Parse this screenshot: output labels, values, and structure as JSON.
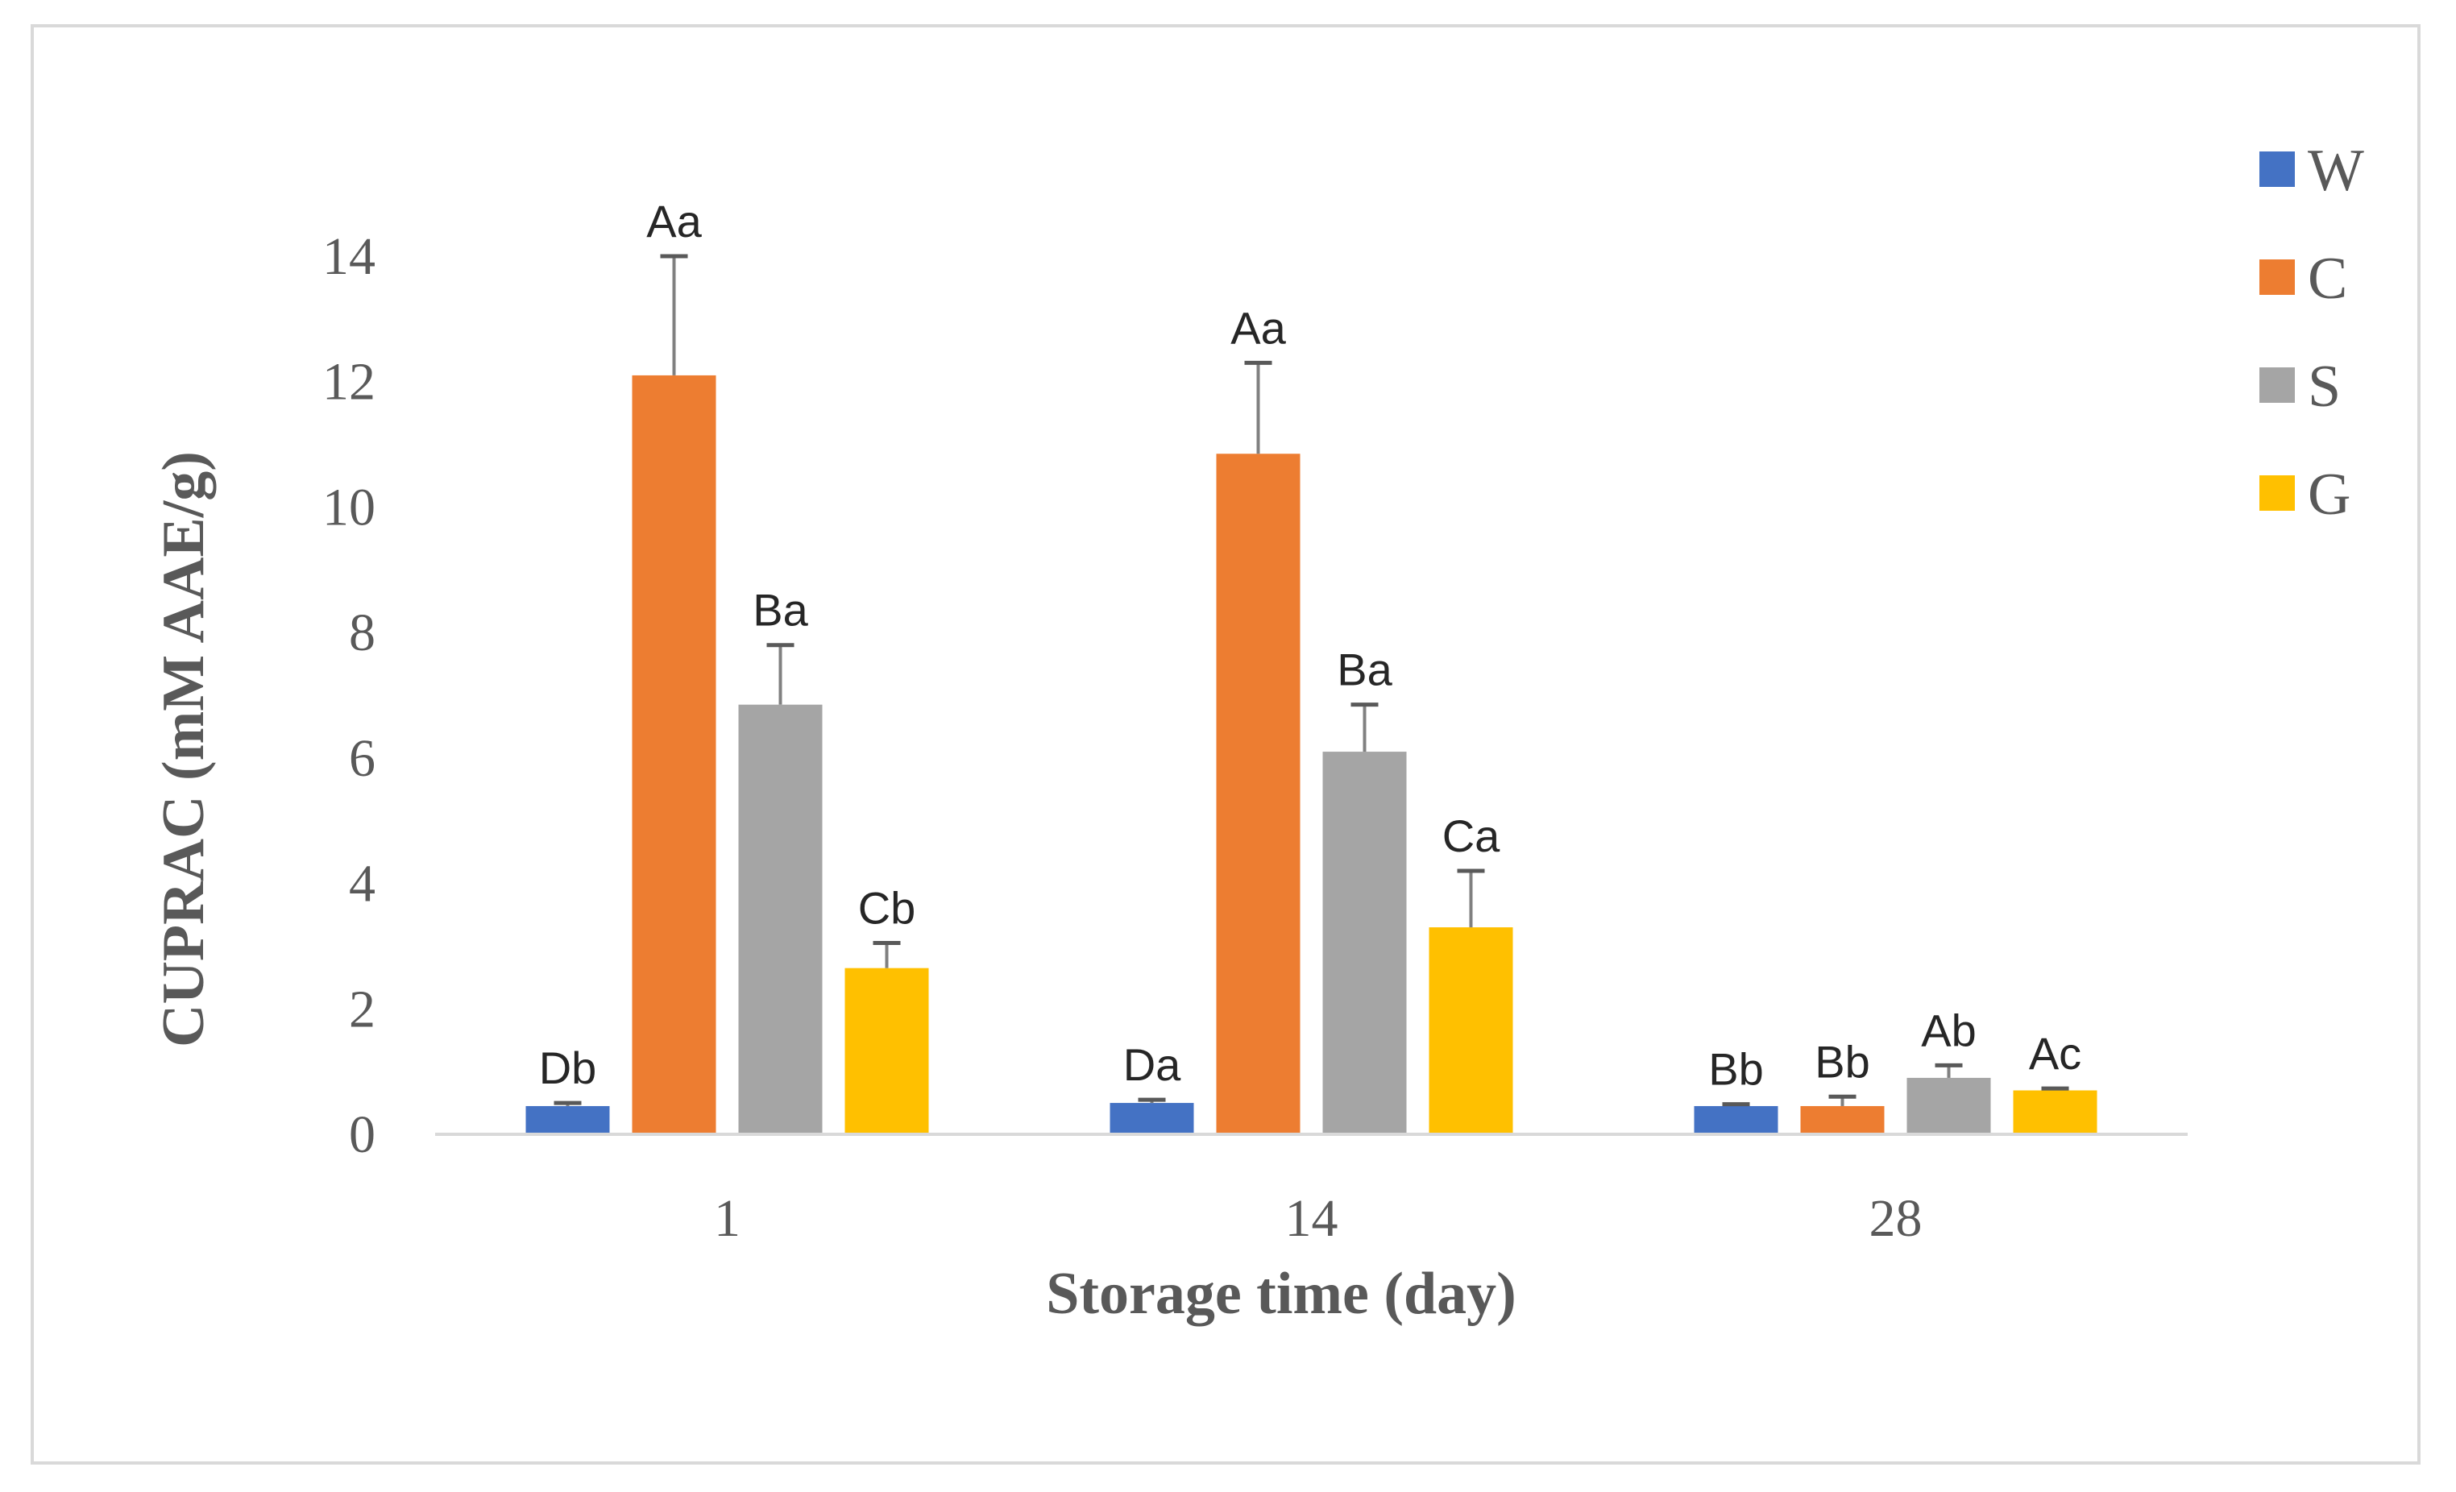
{
  "chart_data": {
    "type": "bar",
    "title": "",
    "xlabel": "Storage time (day)",
    "ylabel": "CUPRAC (mM AAE/g)",
    "categories": [
      "1",
      "14",
      "28"
    ],
    "ylim": [
      0,
      14
    ],
    "yticks": [
      "0",
      "2",
      "4",
      "6",
      "8",
      "10",
      "12",
      "14"
    ],
    "ytick_values": [
      0,
      2,
      4,
      6,
      8,
      10,
      12,
      14
    ],
    "grid": false,
    "legend_position": "right",
    "series": [
      {
        "name": "W",
        "color": "#4472c4",
        "values": [
          0.45,
          0.5,
          0.45
        ],
        "errors": [
          0.05,
          0.05,
          0.03
        ],
        "letters": [
          "Db",
          "Da",
          "Bb"
        ]
      },
      {
        "name": "C",
        "color": "#ed7d31",
        "values": [
          12.1,
          10.85,
          0.45
        ],
        "errors": [
          1.9,
          1.45,
          0.15
        ],
        "letters": [
          "Aa",
          "Aa",
          "Bb"
        ]
      },
      {
        "name": "S",
        "color": "#a5a5a5",
        "values": [
          6.85,
          6.1,
          0.9
        ],
        "errors": [
          0.95,
          0.75,
          0.2
        ],
        "letters": [
          "Ba",
          "Ba",
          "Ab"
        ]
      },
      {
        "name": "G",
        "color": "#ffc000",
        "values": [
          2.65,
          3.3,
          0.7
        ],
        "errors": [
          0.4,
          0.9,
          0.03
        ],
        "letters": [
          "Cb",
          "Ca",
          "Ac"
        ]
      }
    ]
  }
}
